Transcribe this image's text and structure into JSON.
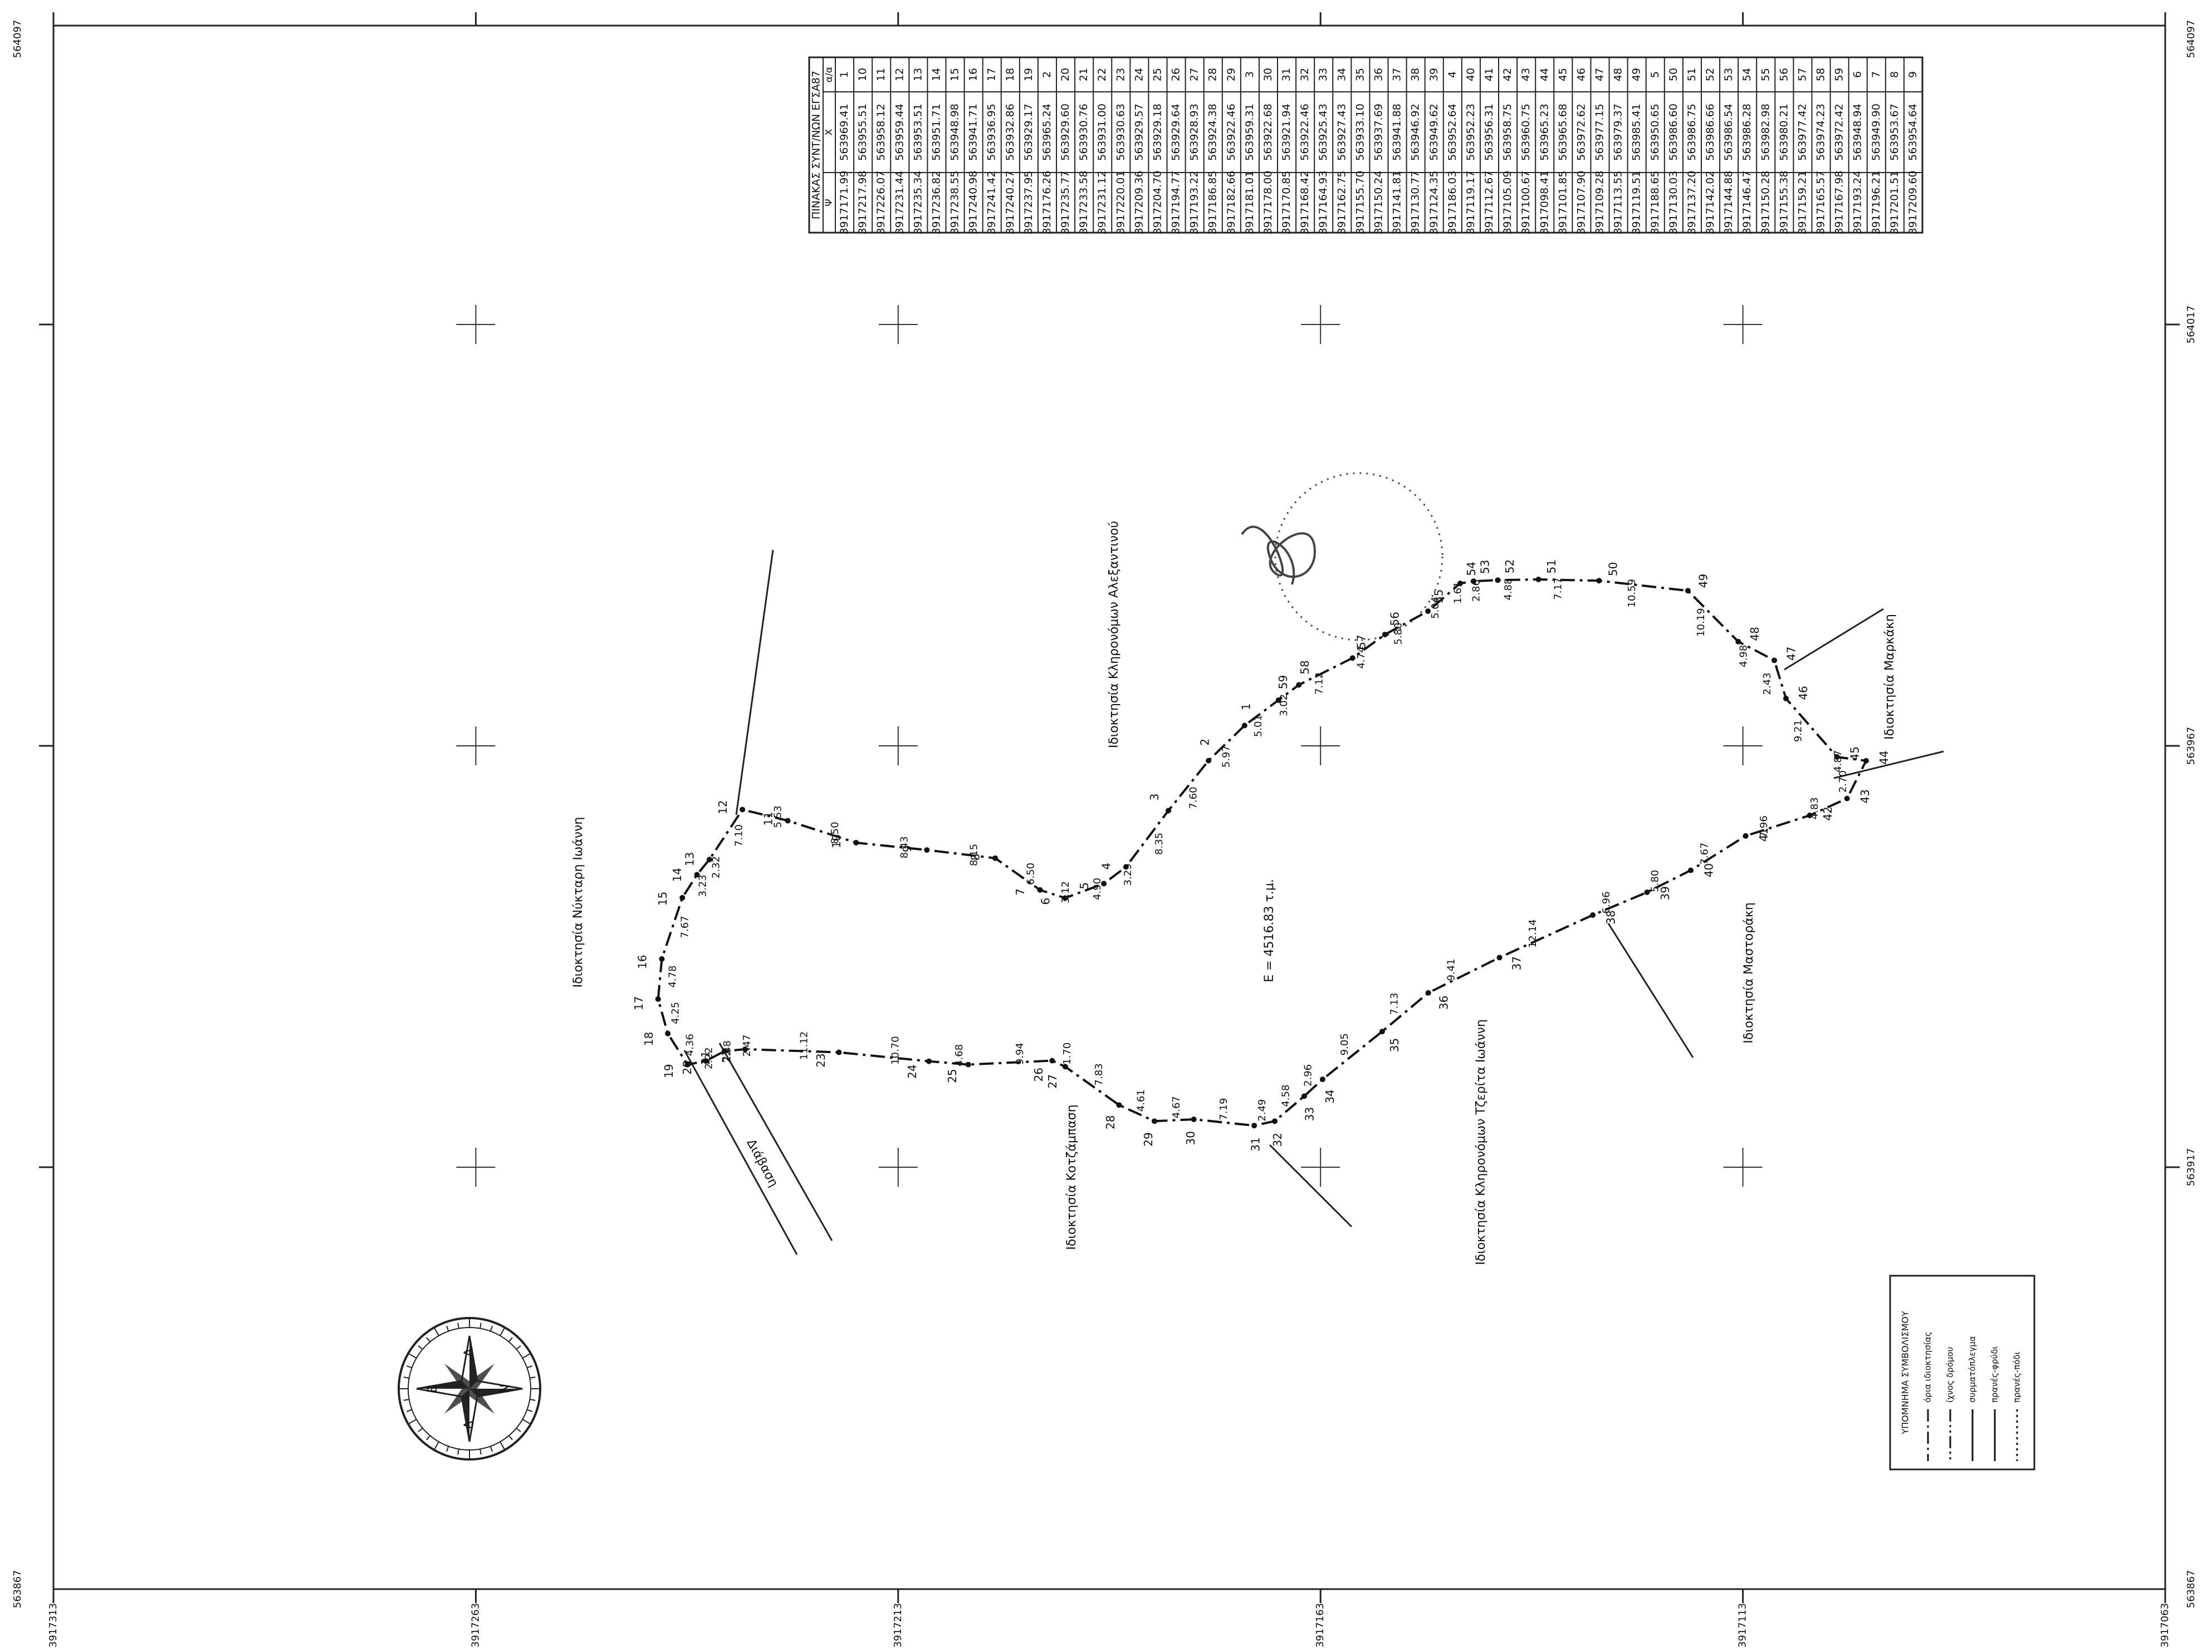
{
  "table": {
    "title": "ΠΙΝΑΚΑΣ ΣΥΝΤ/ΝΩΝ ΕΓΣΑ87",
    "headers": [
      "α/α",
      "Χ",
      "Ψ"
    ],
    "rows": [
      [
        "1",
        "563969.41",
        "3917171.99"
      ],
      [
        "10",
        "563955.51",
        "3917217.98"
      ],
      [
        "11",
        "563958.12",
        "3917226.07"
      ],
      [
        "12",
        "563959.44",
        "3917231.44"
      ],
      [
        "13",
        "563953.51",
        "3917235.34"
      ],
      [
        "14",
        "563951.71",
        "3917236.82"
      ],
      [
        "15",
        "563948.98",
        "3917238.55"
      ],
      [
        "16",
        "563941.71",
        "3917240.98"
      ],
      [
        "17",
        "563936.95",
        "3917241.42"
      ],
      [
        "18",
        "563932.86",
        "3917240.27"
      ],
      [
        "19",
        "563929.17",
        "3917237.95"
      ],
      [
        "2",
        "563965.24",
        "3917176.26"
      ],
      [
        "20",
        "563929.60",
        "3917235.77"
      ],
      [
        "21",
        "563930.76",
        "3917233.58"
      ],
      [
        "22",
        "563931.00",
        "3917231.12"
      ],
      [
        "23",
        "563930.63",
        "3917220.01"
      ],
      [
        "24",
        "563929.57",
        "3917209.36"
      ],
      [
        "25",
        "563929.18",
        "3917204.70"
      ],
      [
        "26",
        "563929.64",
        "3917194.77"
      ],
      [
        "27",
        "563928.93",
        "3917193.22"
      ],
      [
        "28",
        "563924.38",
        "3917186.85"
      ],
      [
        "29",
        "563922.46",
        "3917182.66"
      ],
      [
        "3",
        "563959.31",
        "3917181.01"
      ],
      [
        "30",
        "563922.68",
        "3917178.00"
      ],
      [
        "31",
        "563921.94",
        "3917170.85"
      ],
      [
        "32",
        "563922.46",
        "3917168.42"
      ],
      [
        "33",
        "563925.43",
        "3917164.93"
      ],
      [
        "34",
        "563927.43",
        "3917162.75"
      ],
      [
        "35",
        "563933.10",
        "3917155.70"
      ],
      [
        "36",
        "563937.69",
        "3917150.24"
      ],
      [
        "37",
        "563941.88",
        "3917141.81"
      ],
      [
        "38",
        "563946.92",
        "3917130.77"
      ],
      [
        "39",
        "563949.62",
        "3917124.35"
      ],
      [
        "4",
        "563952.64",
        "3917186.03"
      ],
      [
        "40",
        "563952.23",
        "3917119.17"
      ],
      [
        "41",
        "563956.31",
        "3917112.67"
      ],
      [
        "42",
        "563958.75",
        "3917105.09"
      ],
      [
        "43",
        "563960.75",
        "3917100.67"
      ],
      [
        "44",
        "563965.23",
        "3917098.41"
      ],
      [
        "45",
        "563965.68",
        "3917101.85"
      ],
      [
        "46",
        "563972.62",
        "3917107.90"
      ],
      [
        "47",
        "563977.15",
        "3917109.28"
      ],
      [
        "48",
        "563979.37",
        "3917113.55"
      ],
      [
        "49",
        "563985.41",
        "3917119.51"
      ],
      [
        "5",
        "563950.65",
        "3917188.65"
      ],
      [
        "50",
        "563986.60",
        "3917130.03"
      ],
      [
        "51",
        "563986.75",
        "3917137.20"
      ],
      [
        "52",
        "563986.66",
        "3917142.02"
      ],
      [
        "53",
        "563986.54",
        "3917144.88"
      ],
      [
        "54",
        "563986.28",
        "3917146.47"
      ],
      [
        "55",
        "563982.98",
        "3917150.28"
      ],
      [
        "56",
        "563980.21",
        "3917155.38"
      ],
      [
        "57",
        "563977.42",
        "3917159.21"
      ],
      [
        "58",
        "563974.23",
        "3917165.57"
      ],
      [
        "59",
        "563972.42",
        "3917167.98"
      ],
      [
        "6",
        "563948.94",
        "3917193.24"
      ],
      [
        "7",
        "563949.90",
        "3917196.21"
      ],
      [
        "8",
        "563953.67",
        "3917201.51"
      ],
      [
        "9",
        "563954.64",
        "3917209.60"
      ]
    ]
  },
  "map": {
    "points": [
      {
        "label": "1",
        "distance": "5.97"
      },
      {
        "label": "2",
        "distance": "7.60"
      },
      {
        "label": "3",
        "distance": "8.35"
      },
      {
        "label": "4",
        "distance": "3.29"
      },
      {
        "label": "5",
        "distance": "4.90"
      },
      {
        "label": "6",
        "distance": "3.12"
      },
      {
        "label": "7",
        "distance": "6.50"
      },
      {
        "label": "8",
        "distance": "8.15"
      },
      {
        "label": "9",
        "distance": "8.43"
      },
      {
        "label": "10",
        "distance": "8.50"
      },
      {
        "label": "11",
        "distance": "5.53"
      },
      {
        "label": "12",
        "distance": "7.10"
      },
      {
        "label": "13",
        "distance": "2.32"
      },
      {
        "label": "14",
        "distance": "3.23"
      },
      {
        "label": "15",
        "distance": "7.67"
      },
      {
        "label": "16",
        "distance": "4.78"
      },
      {
        "label": "17",
        "distance": "4.25"
      },
      {
        "label": "18",
        "distance": "4.36"
      },
      {
        "label": "19",
        "distance": "2.22"
      },
      {
        "label": "20",
        "distance": "2.48"
      },
      {
        "label": "21",
        "distance": "2.47"
      },
      {
        "label": "22",
        "distance": "11.12"
      },
      {
        "label": "23",
        "distance": "10.70"
      },
      {
        "label": "24",
        "distance": "4.68"
      },
      {
        "label": "25",
        "distance": "9.94"
      },
      {
        "label": "26",
        "distance": "1.70"
      },
      {
        "label": "27",
        "distance": "7.83"
      },
      {
        "label": "28",
        "distance": "4.61"
      },
      {
        "label": "29",
        "distance": "4.67"
      },
      {
        "label": "30",
        "distance": "7.19"
      },
      {
        "label": "31",
        "distance": "2.49"
      },
      {
        "label": "32",
        "distance": "4.58"
      },
      {
        "label": "33",
        "distance": "2.96"
      },
      {
        "label": "34",
        "distance": "9.05"
      },
      {
        "label": "35",
        "distance": "7.13"
      },
      {
        "label": "36",
        "distance": "9.41"
      },
      {
        "label": "37",
        "distance": "12.14"
      },
      {
        "label": "38",
        "distance": "6.96"
      },
      {
        "label": "39",
        "distance": "5.80"
      },
      {
        "label": "40",
        "distance": "7.67"
      },
      {
        "label": "41",
        "distance": "7.96"
      },
      {
        "label": "42",
        "distance": "4.83"
      },
      {
        "label": "43",
        "distance": "2.70"
      },
      {
        "label": "44",
        "distance": "4.87"
      },
      {
        "label": "45",
        "distance": "9.21"
      },
      {
        "label": "46",
        "distance": "2.43"
      },
      {
        "label": "47",
        "distance": "4.98"
      },
      {
        "label": "48",
        "distance": "10.19"
      },
      {
        "label": "49",
        "distance": "10.59"
      },
      {
        "label": "50",
        "distance": "7.17"
      },
      {
        "label": "51",
        "distance": "4.88"
      },
      {
        "label": "52",
        "distance": "2.86"
      },
      {
        "label": "53",
        "distance": "1.61"
      },
      {
        "label": "54",
        "distance": "5.04"
      },
      {
        "label": "55",
        "distance": "5.80"
      },
      {
        "label": "56",
        "distance": "4.74"
      },
      {
        "label": "57",
        "distance": "7.12"
      },
      {
        "label": "58",
        "distance": "3.02"
      },
      {
        "label": "59",
        "distance": "5.01"
      }
    ],
    "area": "Ε = 4516.83 τ.μ.",
    "owners": [
      "Ιδιοκτησία Κληρονόμων Αλεξαντινού",
      "Ιδιοκτησία Νύκταρη Ιωάννη",
      "Ιδιοκτησία Κοτζάμπαση",
      "Ιδιοκτησία Κληρονόμων Τζερίτα Ιωάννη",
      "Ιδιοκτησία Μαστοράκη",
      "Ιδιοκτησία Μαρκάκη"
    ],
    "road": "Διάβαση"
  },
  "grid": {
    "northings": [
      3917313,
      3917263,
      3917213,
      3917163,
      3917113,
      3917063
    ],
    "eastings": [
      564017,
      563967,
      563917
    ],
    "corner_top": "564097",
    "corner_bottom": "563867"
  },
  "legend": {
    "title": "ΥΠΟΜΝΗΜΑ ΣΥΜΒΟΛΙΣΜΟΥ",
    "items": [
      "όρια ιδιοκτησίας",
      "ίχνος δρόμου",
      "συρματόπλεγμα",
      "πρανές-φρύδι",
      "πρανές-πόδι"
    ]
  },
  "compass": {
    "north": "Β",
    "east": "Α",
    "south": "Ν",
    "west": "Δ"
  }
}
